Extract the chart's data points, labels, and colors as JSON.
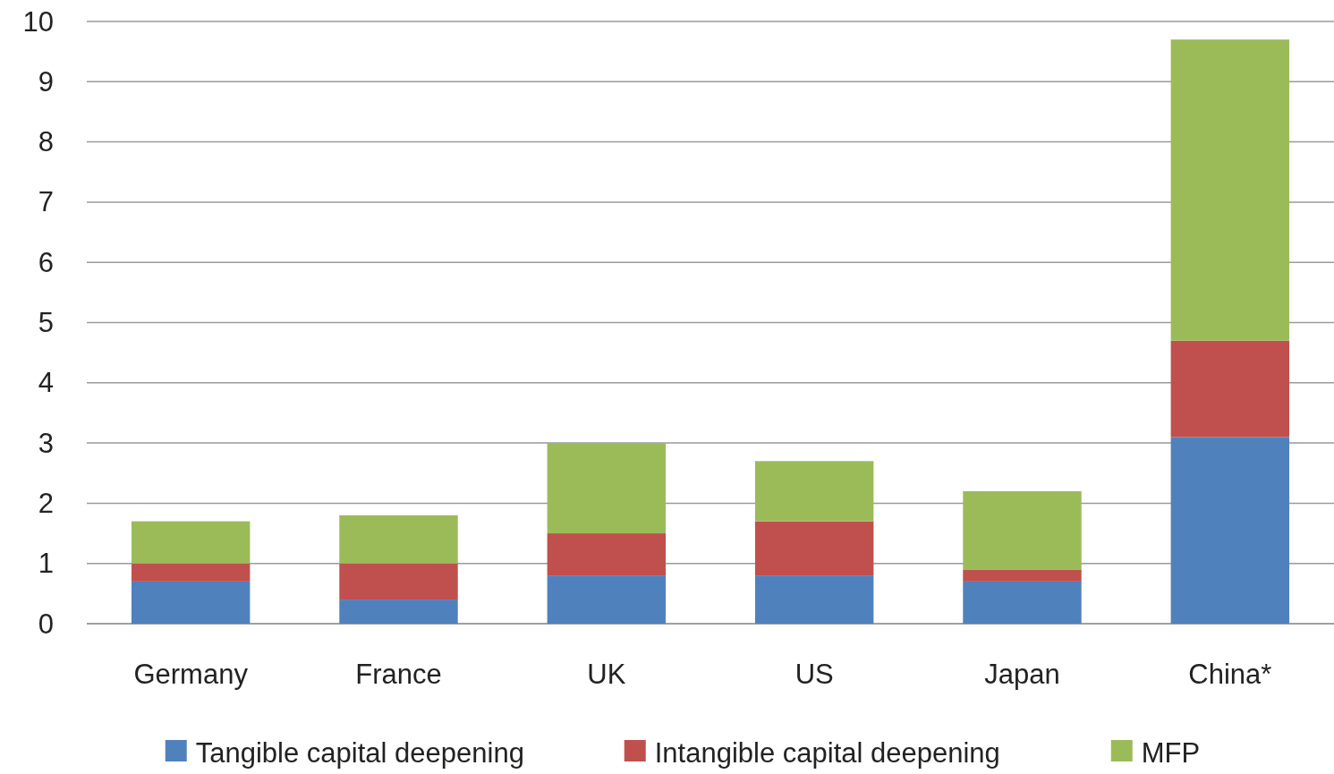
{
  "chart_data": {
    "type": "bar",
    "stacked": true,
    "categories": [
      "Germany",
      "France",
      "UK",
      "US",
      "Japan",
      "China*"
    ],
    "series": [
      {
        "name": "Tangible capital deepening",
        "color": "#4f81bd",
        "values": [
          0.7,
          0.4,
          0.8,
          0.8,
          0.7,
          3.1
        ]
      },
      {
        "name": "Intangible capital deepening",
        "color": "#c0504d",
        "values": [
          0.3,
          0.6,
          0.7,
          0.9,
          0.2,
          1.6
        ]
      },
      {
        "name": "MFP",
        "color": "#9bbb59",
        "values": [
          0.7,
          0.8,
          1.5,
          1.0,
          1.3,
          5.0
        ]
      }
    ],
    "ylim": [
      0,
      10
    ],
    "yticks": [
      0,
      1,
      2,
      3,
      4,
      5,
      6,
      7,
      8,
      9,
      10
    ],
    "grid": "y",
    "legend": "bottom"
  }
}
